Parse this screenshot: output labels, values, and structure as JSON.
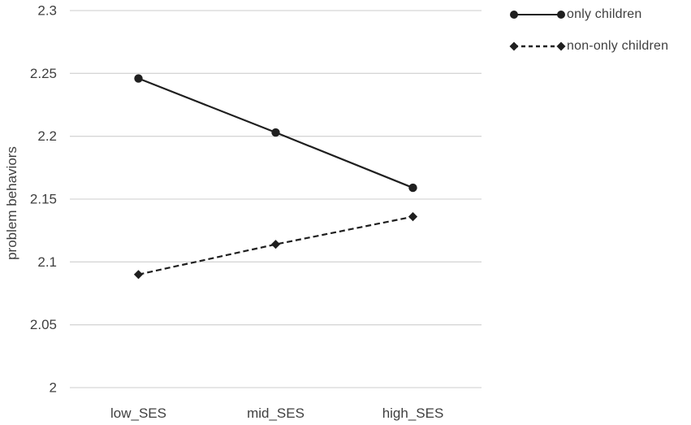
{
  "chart_data": {
    "type": "line",
    "title": "",
    "categories": [
      "low_SES",
      "mid_SES",
      "high_SES"
    ],
    "series": [
      {
        "name": "only children",
        "values": [
          2.246,
          2.203,
          2.159
        ],
        "line_style": "solid",
        "marker": "circle"
      },
      {
        "name": "non-only children",
        "values": [
          2.09,
          2.114,
          2.136
        ],
        "line_style": "dashed",
        "marker": "diamond"
      }
    ],
    "xlabel": "",
    "ylabel": "problem behaviors",
    "ylim": [
      2,
      2.3
    ],
    "yticks": [
      2,
      2.05,
      2.1,
      2.15,
      2.2,
      2.25,
      2.3
    ],
    "ytick_labels": [
      "2",
      "2.05",
      "2.1",
      "2.15",
      "2.2",
      "2.25",
      "2.3"
    ],
    "grid": true,
    "legend_position": "top-right"
  },
  "colors": {
    "series": "#1f1f1f",
    "grid": "#d6d6d6",
    "text": "#3f3f3f",
    "background": "#ffffff"
  }
}
